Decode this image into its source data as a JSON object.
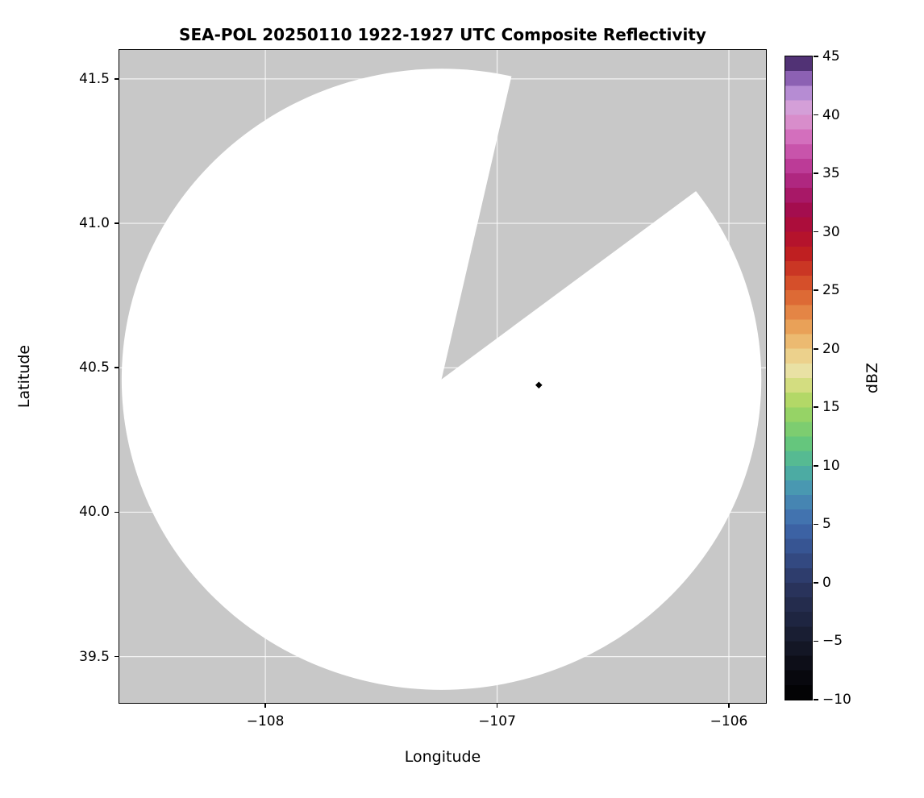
{
  "figure": {
    "title": "SEA-POL 20250110 1922-1927 UTC Composite Reflectivity",
    "x_axis_label": "Longitude",
    "y_axis_label": "Latitude",
    "colorbar_label": "dBZ"
  },
  "chart_data": {
    "type": "heatmap",
    "title": "SEA-POL 20250110 1922-1927 UTC Composite Reflectivity",
    "xlabel": "Longitude",
    "ylabel": "Latitude",
    "xlim": [
      -108.63,
      -105.84
    ],
    "ylim": [
      39.34,
      41.6
    ],
    "background_color": "#c8c8c8",
    "grid": {
      "on": true,
      "color": "#ffffff",
      "opacity": 0.8
    },
    "x_ticks": [
      {
        "value": -108,
        "label": "−108"
      },
      {
        "value": -107,
        "label": "−107"
      },
      {
        "value": -106,
        "label": "−106"
      }
    ],
    "y_ticks": [
      {
        "value": 41.5,
        "label": "41.5"
      },
      {
        "value": 41.0,
        "label": "41.0"
      },
      {
        "value": 40.5,
        "label": "40.5"
      },
      {
        "value": 40.0,
        "label": "40.0"
      },
      {
        "value": 39.5,
        "label": "39.5"
      }
    ],
    "radar_coverage": {
      "center_lon": -107.24,
      "center_lat": 40.46,
      "radius_deg_lon": 1.38,
      "radius_deg_lat": 1.075,
      "fill": "#ffffff",
      "blocked_sector_azimuth_deg": [
        13,
        54
      ],
      "note": "scan circle shows no reflectivity echoes (white); gray = no data / outside coverage"
    },
    "marker": {
      "lon": -106.82,
      "lat": 40.44,
      "shape": "diamond",
      "color": "#000000"
    },
    "colorbar": {
      "label": "dBZ",
      "min": -10,
      "max": 45,
      "band_step": 1.25,
      "ticks": [
        {
          "value": 45,
          "label": "45"
        },
        {
          "value": 40,
          "label": "40"
        },
        {
          "value": 35,
          "label": "35"
        },
        {
          "value": 30,
          "label": "30"
        },
        {
          "value": 25,
          "label": "25"
        },
        {
          "value": 20,
          "label": "20"
        },
        {
          "value": 15,
          "label": "15"
        },
        {
          "value": 10,
          "label": "10"
        },
        {
          "value": 5,
          "label": "5"
        },
        {
          "value": 0,
          "label": "0"
        },
        {
          "value": -5,
          "label": "−5"
        },
        {
          "value": -10,
          "label": "−10"
        }
      ],
      "stops": [
        {
          "value": -10,
          "color": "#000000"
        },
        {
          "value": -7,
          "color": "#0c0d17"
        },
        {
          "value": -5,
          "color": "#161a2c"
        },
        {
          "value": -3,
          "color": "#1f2642"
        },
        {
          "value": -1,
          "color": "#273156"
        },
        {
          "value": 0,
          "color": "#2c3763"
        },
        {
          "value": 2,
          "color": "#334a83"
        },
        {
          "value": 4,
          "color": "#3a5da0"
        },
        {
          "value": 5,
          "color": "#3f6aab"
        },
        {
          "value": 6,
          "color": "#4478b2"
        },
        {
          "value": 8,
          "color": "#4996b2"
        },
        {
          "value": 10,
          "color": "#4eb49c"
        },
        {
          "value": 12,
          "color": "#66c77b"
        },
        {
          "value": 14,
          "color": "#8ed167"
        },
        {
          "value": 15,
          "color": "#a4d563"
        },
        {
          "value": 16,
          "color": "#bcd96a"
        },
        {
          "value": 17,
          "color": "#d6de83"
        },
        {
          "value": 18,
          "color": "#e9e2a6"
        },
        {
          "value": 19,
          "color": "#ecd795"
        },
        {
          "value": 20,
          "color": "#edc77d"
        },
        {
          "value": 22,
          "color": "#e99e55"
        },
        {
          "value": 24,
          "color": "#e07238"
        },
        {
          "value": 26,
          "color": "#d24727"
        },
        {
          "value": 28,
          "color": "#c02020"
        },
        {
          "value": 30,
          "color": "#b00d31"
        },
        {
          "value": 32,
          "color": "#a30d50"
        },
        {
          "value": 34,
          "color": "#ab2178"
        },
        {
          "value": 35,
          "color": "#b5308c"
        },
        {
          "value": 36,
          "color": "#c0429e"
        },
        {
          "value": 38,
          "color": "#d26cbc"
        },
        {
          "value": 40,
          "color": "#db9cd2"
        },
        {
          "value": 41,
          "color": "#cfa0dc"
        },
        {
          "value": 42,
          "color": "#b289d2"
        },
        {
          "value": 43,
          "color": "#9166b8"
        },
        {
          "value": 44,
          "color": "#66418e"
        },
        {
          "value": 45,
          "color": "#2e1a4a"
        }
      ]
    }
  }
}
